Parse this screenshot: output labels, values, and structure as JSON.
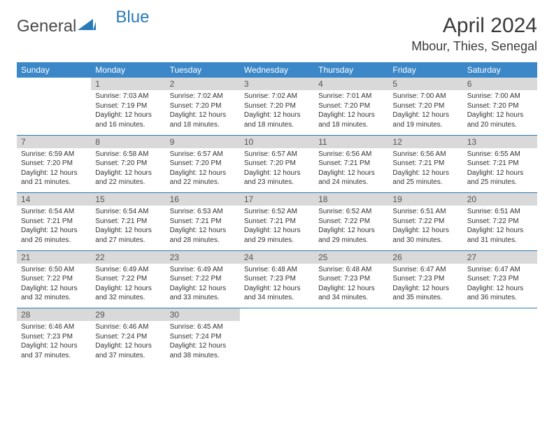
{
  "logo": {
    "text1": "General",
    "text2": "Blue"
  },
  "title": "April 2024",
  "location": "Mbour, Thies, Senegal",
  "colors": {
    "header_bg": "#3b87c8",
    "header_text": "#ffffff",
    "daynum_bg": "#d9d9d9",
    "rule": "#2a7ab8",
    "logo_blue": "#2a7ab8"
  },
  "day_headers": [
    "Sunday",
    "Monday",
    "Tuesday",
    "Wednesday",
    "Thursday",
    "Friday",
    "Saturday"
  ],
  "weeks": [
    [
      null,
      {
        "n": "1",
        "sunrise": "7:03 AM",
        "sunset": "7:19 PM",
        "daylight": "12 hours and 16 minutes."
      },
      {
        "n": "2",
        "sunrise": "7:02 AM",
        "sunset": "7:20 PM",
        "daylight": "12 hours and 18 minutes."
      },
      {
        "n": "3",
        "sunrise": "7:02 AM",
        "sunset": "7:20 PM",
        "daylight": "12 hours and 18 minutes."
      },
      {
        "n": "4",
        "sunrise": "7:01 AM",
        "sunset": "7:20 PM",
        "daylight": "12 hours and 18 minutes."
      },
      {
        "n": "5",
        "sunrise": "7:00 AM",
        "sunset": "7:20 PM",
        "daylight": "12 hours and 19 minutes."
      },
      {
        "n": "6",
        "sunrise": "7:00 AM",
        "sunset": "7:20 PM",
        "daylight": "12 hours and 20 minutes."
      }
    ],
    [
      {
        "n": "7",
        "sunrise": "6:59 AM",
        "sunset": "7:20 PM",
        "daylight": "12 hours and 21 minutes."
      },
      {
        "n": "8",
        "sunrise": "6:58 AM",
        "sunset": "7:20 PM",
        "daylight": "12 hours and 22 minutes."
      },
      {
        "n": "9",
        "sunrise": "6:57 AM",
        "sunset": "7:20 PM",
        "daylight": "12 hours and 22 minutes."
      },
      {
        "n": "10",
        "sunrise": "6:57 AM",
        "sunset": "7:20 PM",
        "daylight": "12 hours and 23 minutes."
      },
      {
        "n": "11",
        "sunrise": "6:56 AM",
        "sunset": "7:21 PM",
        "daylight": "12 hours and 24 minutes."
      },
      {
        "n": "12",
        "sunrise": "6:56 AM",
        "sunset": "7:21 PM",
        "daylight": "12 hours and 25 minutes."
      },
      {
        "n": "13",
        "sunrise": "6:55 AM",
        "sunset": "7:21 PM",
        "daylight": "12 hours and 25 minutes."
      }
    ],
    [
      {
        "n": "14",
        "sunrise": "6:54 AM",
        "sunset": "7:21 PM",
        "daylight": "12 hours and 26 minutes."
      },
      {
        "n": "15",
        "sunrise": "6:54 AM",
        "sunset": "7:21 PM",
        "daylight": "12 hours and 27 minutes."
      },
      {
        "n": "16",
        "sunrise": "6:53 AM",
        "sunset": "7:21 PM",
        "daylight": "12 hours and 28 minutes."
      },
      {
        "n": "17",
        "sunrise": "6:52 AM",
        "sunset": "7:21 PM",
        "daylight": "12 hours and 29 minutes."
      },
      {
        "n": "18",
        "sunrise": "6:52 AM",
        "sunset": "7:22 PM",
        "daylight": "12 hours and 29 minutes."
      },
      {
        "n": "19",
        "sunrise": "6:51 AM",
        "sunset": "7:22 PM",
        "daylight": "12 hours and 30 minutes."
      },
      {
        "n": "20",
        "sunrise": "6:51 AM",
        "sunset": "7:22 PM",
        "daylight": "12 hours and 31 minutes."
      }
    ],
    [
      {
        "n": "21",
        "sunrise": "6:50 AM",
        "sunset": "7:22 PM",
        "daylight": "12 hours and 32 minutes."
      },
      {
        "n": "22",
        "sunrise": "6:49 AM",
        "sunset": "7:22 PM",
        "daylight": "12 hours and 32 minutes."
      },
      {
        "n": "23",
        "sunrise": "6:49 AM",
        "sunset": "7:22 PM",
        "daylight": "12 hours and 33 minutes."
      },
      {
        "n": "24",
        "sunrise": "6:48 AM",
        "sunset": "7:23 PM",
        "daylight": "12 hours and 34 minutes."
      },
      {
        "n": "25",
        "sunrise": "6:48 AM",
        "sunset": "7:23 PM",
        "daylight": "12 hours and 34 minutes."
      },
      {
        "n": "26",
        "sunrise": "6:47 AM",
        "sunset": "7:23 PM",
        "daylight": "12 hours and 35 minutes."
      },
      {
        "n": "27",
        "sunrise": "6:47 AM",
        "sunset": "7:23 PM",
        "daylight": "12 hours and 36 minutes."
      }
    ],
    [
      {
        "n": "28",
        "sunrise": "6:46 AM",
        "sunset": "7:23 PM",
        "daylight": "12 hours and 37 minutes."
      },
      {
        "n": "29",
        "sunrise": "6:46 AM",
        "sunset": "7:24 PM",
        "daylight": "12 hours and 37 minutes."
      },
      {
        "n": "30",
        "sunrise": "6:45 AM",
        "sunset": "7:24 PM",
        "daylight": "12 hours and 38 minutes."
      },
      null,
      null,
      null,
      null
    ]
  ],
  "labels": {
    "sunrise": "Sunrise:",
    "sunset": "Sunset:",
    "daylight": "Daylight:"
  }
}
